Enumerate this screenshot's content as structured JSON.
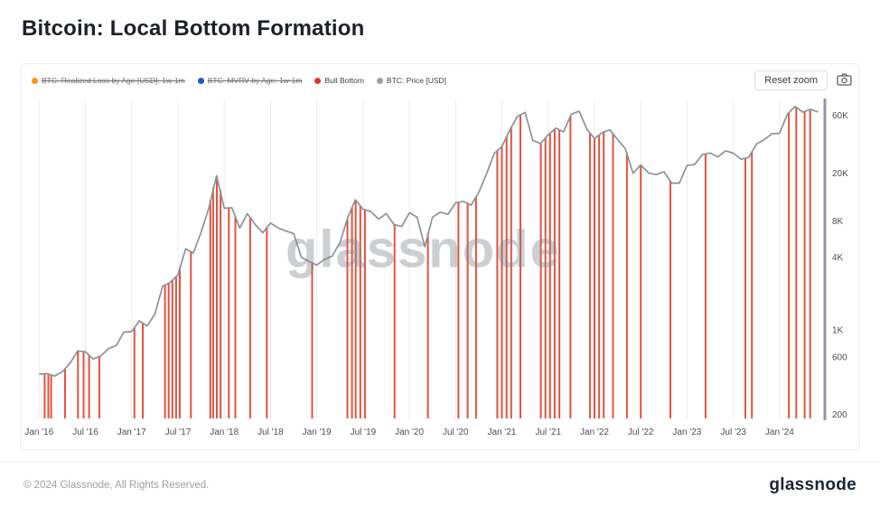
{
  "title": "Bitcoin: Local Bottom Formation",
  "toolbar": {
    "reset_zoom_label": "Reset zoom"
  },
  "legend": [
    {
      "label": "BTC: Realized Loss by Age [USD]: 1w-1m",
      "color": "#f7931a",
      "disabled": true
    },
    {
      "label": "BTC: MVRV by Age: 1w-1m",
      "color": "#1857e0",
      "disabled": true
    },
    {
      "label": "Bull Bottom",
      "color": "#dc3d28",
      "disabled": false
    },
    {
      "label": "BTC: Price [USD]",
      "color": "#9aa0a6",
      "disabled": false
    }
  ],
  "watermark": "glassnode",
  "footer": {
    "copyright": "© 2024 Glassnode, All Rights Reserved.",
    "brand": "glassnode"
  },
  "chart_data": {
    "type": "line",
    "title": "Bitcoin: Local Bottom Formation",
    "y_scale": "log",
    "x_range": [
      2015.88,
      2024.45
    ],
    "y_range": [
      185,
      80000
    ],
    "line_color": "#8b9397",
    "bar_color": "#dc3d28",
    "grid_color": "#ebebeb",
    "axis_line_color": "#9097a0",
    "x_start": 2016.0,
    "x_step_months": 1,
    "series": [
      {
        "name": "BTC: Price [USD]",
        "values": [
          430,
          435,
          415,
          450,
          530,
          670,
          660,
          575,
          610,
          700,
          745,
          960,
          970,
          1190,
          1080,
          1350,
          2300,
          2480,
          2870,
          4700,
          4340,
          6450,
          10200,
          19000,
          10200,
          10300,
          7000,
          9200,
          7500,
          6400,
          7700,
          7000,
          6600,
          6300,
          4000,
          3700,
          3450,
          3850,
          4100,
          5300,
          8500,
          12000,
          10000,
          9600,
          8300,
          9200,
          7500,
          7200,
          9350,
          8600,
          4900,
          8600,
          9450,
          9100,
          11300,
          11650,
          10800,
          13800,
          19700,
          29000,
          33100,
          45100,
          58800,
          63500,
          37300,
          35000,
          41500,
          47100,
          43800,
          61300,
          65000,
          46200,
          38500,
          43200,
          45500,
          37700,
          31800,
          19900,
          23300,
          20000,
          19400,
          20500,
          16500,
          16500,
          23100,
          23500,
          28500,
          29300,
          27200,
          30500,
          29200,
          26000,
          26900,
          34700,
          37700,
          42300,
          42600,
          61200,
          71300,
          63800,
          67500,
          64000
        ]
      }
    ],
    "bull_bottoms": [
      2016.06,
      2016.1,
      2016.13,
      2016.28,
      2016.42,
      2016.48,
      2016.54,
      2016.65,
      2017.03,
      2017.12,
      2017.36,
      2017.4,
      2017.44,
      2017.48,
      2017.52,
      2017.64,
      2017.85,
      2017.88,
      2017.92,
      2017.96,
      2018.05,
      2018.12,
      2018.28,
      2018.46,
      2018.95,
      2019.33,
      2019.38,
      2019.42,
      2019.47,
      2019.52,
      2019.84,
      2020.2,
      2020.53,
      2020.63,
      2020.72,
      2020.95,
      2021.0,
      2021.05,
      2021.1,
      2021.2,
      2021.42,
      2021.47,
      2021.52,
      2021.57,
      2021.62,
      2021.74,
      2021.95,
      2022.0,
      2022.05,
      2022.1,
      2022.2,
      2022.35,
      2022.5,
      2022.82,
      2023.2,
      2023.63,
      2023.7,
      2024.1,
      2024.18,
      2024.27,
      2024.33
    ],
    "y_ticks": [
      {
        "label": "60K",
        "value": 60000
      },
      {
        "label": "20K",
        "value": 20000
      },
      {
        "label": "8K",
        "value": 8000
      },
      {
        "label": "4K",
        "value": 4000
      },
      {
        "label": "1K",
        "value": 1000
      },
      {
        "label": "600",
        "value": 600
      },
      {
        "label": "200",
        "value": 200
      }
    ],
    "x_ticks": [
      {
        "label": "Jan '16",
        "t": 2016.0
      },
      {
        "label": "Jul '16",
        "t": 2016.5
      },
      {
        "label": "Jan '17",
        "t": 2017.0
      },
      {
        "label": "Jul '17",
        "t": 2017.5
      },
      {
        "label": "Jan '18",
        "t": 2018.0
      },
      {
        "label": "Jul '18",
        "t": 2018.5
      },
      {
        "label": "Jan '19",
        "t": 2019.0
      },
      {
        "label": "Jul '19",
        "t": 2019.5
      },
      {
        "label": "Jan '20",
        "t": 2020.0
      },
      {
        "label": "Jul '20",
        "t": 2020.5
      },
      {
        "label": "Jan '21",
        "t": 2021.0
      },
      {
        "label": "Jul '21",
        "t": 2021.5
      },
      {
        "label": "Jan '22",
        "t": 2022.0
      },
      {
        "label": "Jul '22",
        "t": 2022.5
      },
      {
        "label": "Jan '23",
        "t": 2023.0
      },
      {
        "label": "Jul '23",
        "t": 2023.5
      },
      {
        "label": "Jan '24",
        "t": 2024.0
      }
    ],
    "legend_position": "top-left",
    "grid": "vertical-only"
  }
}
